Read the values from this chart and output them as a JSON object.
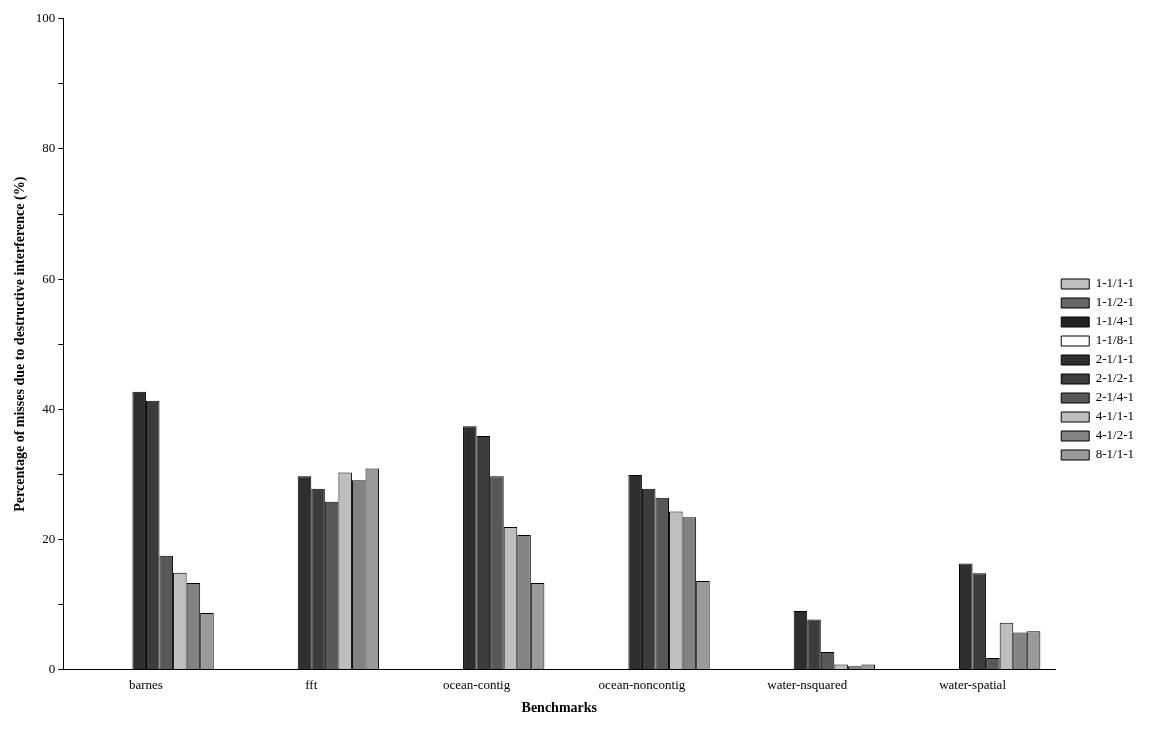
{
  "chart_data": {
    "type": "bar",
    "xlabel": "Benchmarks",
    "ylabel": "Percentage of misses due to destructive interference (%)",
    "categories": [
      "barnes",
      "fft",
      "ocean-contig",
      "ocean-noncontig",
      "water-nsquared",
      "water-spatial"
    ],
    "series": [
      {
        "name": "1-1/1-1",
        "color": "#c0c0c0",
        "values": [
          0,
          0,
          0,
          0,
          0,
          0
        ]
      },
      {
        "name": "1-1/2-1",
        "color": "#666666",
        "values": [
          0,
          0,
          0,
          0,
          0,
          0
        ]
      },
      {
        "name": "1-1/4-1",
        "color": "#222222",
        "values": [
          0,
          0,
          0,
          0,
          0,
          0
        ]
      },
      {
        "name": "1-1/8-1",
        "color": "#ffffff",
        "values": [
          0,
          0,
          0,
          0,
          0,
          0
        ]
      },
      {
        "name": "2-1/1-1",
        "color": "#2e2e2e",
        "values": [
          42.7,
          29.7,
          37.4,
          29.9,
          9.0,
          16.3
        ]
      },
      {
        "name": "2-1/2-1",
        "color": "#3c3c3c",
        "values": [
          41.3,
          27.8,
          35.9,
          27.8,
          7.7,
          14.8
        ]
      },
      {
        "name": "2-1/4-1",
        "color": "#585858",
        "values": [
          17.5,
          25.8,
          29.7,
          26.4,
          2.7,
          1.8
        ]
      },
      {
        "name": "4-1/1-1",
        "color": "#bebebe",
        "values": [
          14.9,
          30.3,
          21.9,
          24.3,
          0.8,
          7.2
        ]
      },
      {
        "name": "4-1/2-1",
        "color": "#828282",
        "values": [
          13.3,
          29.1,
          20.7,
          23.4,
          0.5,
          5.7
        ]
      },
      {
        "name": "8-1/1-1",
        "color": "#9a9a9a",
        "values": [
          8.7,
          30.9,
          13.3,
          13.6,
          0.8,
          5.9
        ]
      }
    ],
    "ylim": [
      0,
      100
    ],
    "yticks": [
      0,
      {
        "value": 10,
        "label": null
      },
      20,
      {
        "value": 30,
        "label": null
      },
      40,
      {
        "value": 50,
        "label": null
      },
      60,
      {
        "value": 70,
        "label": null
      },
      80,
      {
        "value": 90,
        "label": null
      },
      100
    ],
    "grid": false,
    "legend": "right"
  }
}
